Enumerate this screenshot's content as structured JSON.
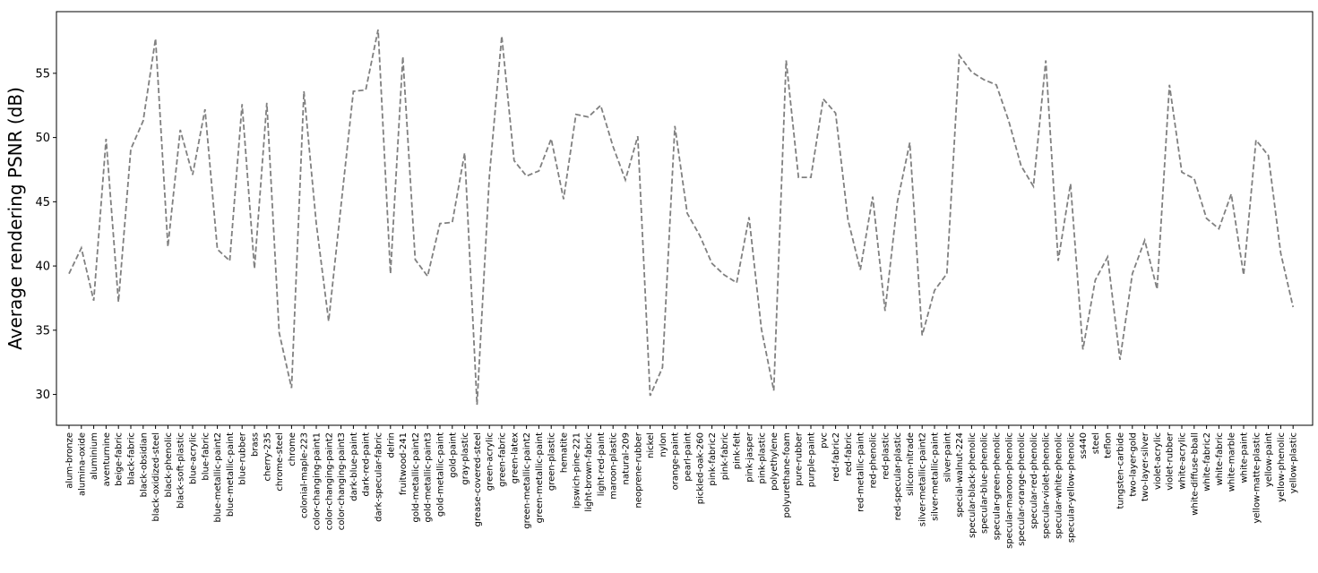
{
  "chart_data": {
    "type": "line",
    "ylabel": "Average rendering PSNR (dB)",
    "xlabel": "",
    "title": "",
    "ylim": [
      27.6,
      59.8
    ],
    "yticks": [
      30,
      35,
      40,
      45,
      50,
      55
    ],
    "grid": false,
    "line_style": "dashed",
    "line_color": "#808080",
    "categories": [
      "alum-bronze",
      "alumina-oxide",
      "aluminium",
      "aventurnine",
      "beige-fabric",
      "black-fabric",
      "black-obsidian",
      "black-oxidized-steel",
      "black-phenolic",
      "black-soft-plastic",
      "blue-acrylic",
      "blue-fabric",
      "blue-metallic-paint2",
      "blue-metallic-paint",
      "blue-rubber",
      "brass",
      "cherry-235",
      "chrome-steel",
      "chrome",
      "colonial-maple-223",
      "color-changing-paint1",
      "color-changing-paint2",
      "color-changing-paint3",
      "dark-blue-paint",
      "dark-red-paint",
      "dark-specular-fabric",
      "delrin",
      "fruitwood-241",
      "gold-metallic-paint2",
      "gold-metallic-paint3",
      "gold-metallic-paint",
      "gold-paint",
      "gray-plastic",
      "grease-covered-steel",
      "green-acrylic",
      "green-fabric",
      "green-latex",
      "green-metallic-paint2",
      "green-metallic-paint",
      "green-plastic",
      "hematite",
      "ipswich-pine-221",
      "light-brown-fabric",
      "light-red-paint",
      "maroon-plastic",
      "natural-209",
      "neoprene-rubber",
      "nickel",
      "nylon",
      "orange-paint",
      "pearl-paint",
      "pickled-oak-260",
      "pink-fabric2",
      "pink-fabric",
      "pink-felt",
      "pink-jasper",
      "pink-plastic",
      "polyethylene",
      "polyurethane-foam",
      "pure-rubber",
      "purple-paint",
      "pvc",
      "red-fabric2",
      "red-fabric",
      "red-metallic-paint",
      "red-phenolic",
      "red-plastic",
      "red-specular-plastic",
      "silicon-nitrade",
      "silver-metallic-paint2",
      "silver-metallic-paint",
      "silver-paint",
      "special-walnut-224",
      "specular-black-phenolic",
      "specular-blue-phenolic",
      "specular-green-phenolic",
      "specular-maroon-phenolic",
      "specular-orange-phenolic",
      "specular-red-phenolic",
      "specular-violet-phenolic",
      "specular-white-phenolic",
      "specular-yellow-phenolic",
      "ss440",
      "steel",
      "teflon",
      "tungsten-carbide",
      "two-layer-gold",
      "two-layer-silver",
      "violet-acrylic",
      "violet-rubber",
      "white-acrylic",
      "white-diffuse-bball",
      "white-fabric2",
      "white-fabric",
      "white-marble",
      "white-paint",
      "yellow-matte-plastic",
      "yellow-paint",
      "yellow-phenolic",
      "yellow-plastic"
    ],
    "series": [
      {
        "values": [
          39.4,
          41.4,
          37.3,
          49.9,
          37.2,
          49.1,
          51.3,
          57.7,
          41.5,
          50.6,
          47.1,
          52.2,
          41.3,
          40.4,
          52.6,
          39.8,
          52.7,
          34.8,
          30.5,
          53.6,
          43.3,
          35.7,
          44.7,
          53.6,
          53.7,
          58.4,
          39.4,
          56.3,
          40.5,
          39.2,
          43.3,
          43.4,
          48.8,
          29.2,
          47.0,
          57.9,
          48.2,
          47.0,
          47.4,
          49.9,
          45.2,
          51.8,
          51.6,
          52.5,
          49.3,
          46.7,
          50.1,
          29.9,
          32.1,
          50.9,
          44.1,
          42.4,
          40.2,
          39.3,
          38.7,
          43.8,
          35.1,
          30.3,
          56.0,
          46.9,
          46.9,
          53.0,
          51.9,
          43.6,
          39.7,
          45.4,
          36.5,
          45.0,
          49.6,
          34.6,
          38.1,
          39.4,
          56.4,
          55.1,
          54.5,
          54.1,
          51.3,
          47.8,
          46.2,
          56.0,
          40.4,
          46.4,
          33.5,
          38.9,
          40.7,
          32.7,
          39.4,
          42.0,
          38.2,
          54.1,
          47.3,
          46.8,
          43.7,
          42.9,
          45.6,
          39.3,
          49.8,
          48.6,
          41.0,
          36.8
        ]
      }
    ]
  }
}
